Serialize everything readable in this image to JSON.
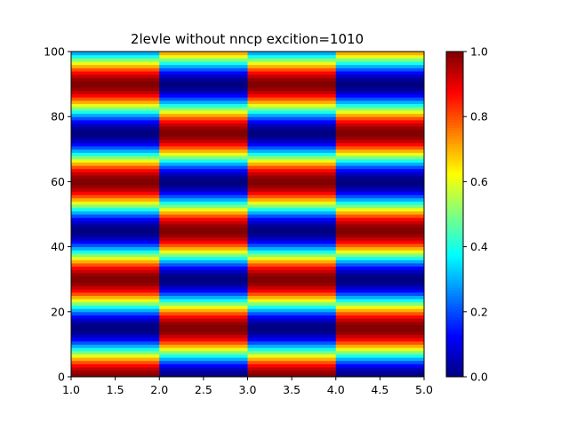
{
  "chart_data": {
    "type": "heatmap",
    "title": "2levle without nncp excition=1010",
    "xlabel": "",
    "ylabel": "",
    "xlim": [
      1.0,
      5.0
    ],
    "ylim": [
      0,
      100
    ],
    "xticks": [
      "1.0",
      "1.5",
      "2.0",
      "2.5",
      "3.0",
      "3.5",
      "4.0",
      "4.5",
      "5.0"
    ],
    "yticks": [
      "0",
      "20",
      "40",
      "60",
      "80",
      "100"
    ],
    "colormap": "jet",
    "colorbar": {
      "range": [
        0.0,
        1.0
      ],
      "ticks": [
        "0.0",
        "0.2",
        "0.4",
        "0.6",
        "0.8",
        "1.0"
      ]
    },
    "columns": [
      {
        "x_range": [
          1.0,
          2.0
        ],
        "pattern": "0.5 + 0.5*cos(2*pi*(y-30)/30)"
      },
      {
        "x_range": [
          2.0,
          3.0
        ],
        "pattern": "0.5 - 0.5*cos(2*pi*(y-30)/30)"
      },
      {
        "x_range": [
          3.0,
          4.0
        ],
        "pattern": "0.5 + 0.5*cos(2*pi*(y-30)/30)"
      },
      {
        "x_range": [
          4.0,
          5.0
        ],
        "pattern": "0.5 - 0.5*cos(2*pi*(y-30)/30)"
      }
    ],
    "period_y": 30,
    "peak_y_odd_columns": [
      0,
      30,
      60,
      90
    ],
    "grid": false
  }
}
